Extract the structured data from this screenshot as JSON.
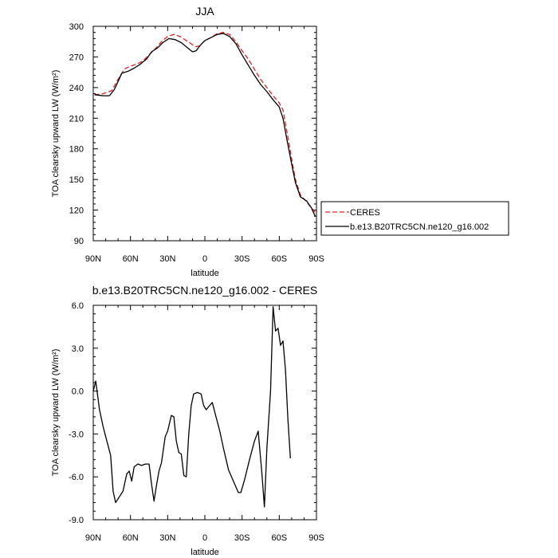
{
  "chart_data": [
    {
      "type": "line",
      "title": "JJA",
      "xlabel": "latitude",
      "ylabel": "TOA clearsky upward LW (W/m²)",
      "x_units": "latitude degrees (90N = 90, 90S = -90)",
      "xlim": [
        90,
        -90
      ],
      "ylim": [
        90,
        300
      ],
      "xticks": [
        {
          "value": 90,
          "label": "90N"
        },
        {
          "value": 60,
          "label": "60N"
        },
        {
          "value": 30,
          "label": "30N"
        },
        {
          "value": 0,
          "label": "0"
        },
        {
          "value": -30,
          "label": "30S"
        },
        {
          "value": -60,
          "label": "60S"
        },
        {
          "value": -90,
          "label": "90S"
        }
      ],
      "yticks": [
        {
          "value": 90,
          "label": "90"
        },
        {
          "value": 120,
          "label": "120"
        },
        {
          "value": 150,
          "label": "150"
        },
        {
          "value": 180,
          "label": "180"
        },
        {
          "value": 210,
          "label": "210"
        },
        {
          "value": 240,
          "label": "240"
        },
        {
          "value": 270,
          "label": "270"
        },
        {
          "value": 300,
          "label": "300"
        }
      ],
      "legend": {
        "placement": "right"
      },
      "series": [
        {
          "name": "CERES",
          "color": "#e02020",
          "dash": "dashed",
          "points": [
            [
              89,
              233
            ],
            [
              82,
              234
            ],
            [
              75,
              237
            ],
            [
              70,
              248
            ],
            [
              65,
              258
            ],
            [
              60,
              261
            ],
            [
              55,
              263
            ],
            [
              50,
              266
            ],
            [
              45,
              272
            ],
            [
              40,
              278
            ],
            [
              35,
              285
            ],
            [
              30,
              290
            ],
            [
              25,
              292
            ],
            [
              20,
              290
            ],
            [
              15,
              286
            ],
            [
              10,
              282
            ],
            [
              7,
              280
            ],
            [
              4,
              281
            ],
            [
              0,
              286
            ],
            [
              -5,
              289
            ],
            [
              -10,
              293
            ],
            [
              -15,
              294
            ],
            [
              -20,
              292
            ],
            [
              -25,
              285
            ],
            [
              -30,
              276
            ],
            [
              -35,
              268
            ],
            [
              -40,
              258
            ],
            [
              -45,
              248
            ],
            [
              -50,
              240
            ],
            [
              -55,
              232
            ],
            [
              -60,
              225
            ],
            [
              -63,
              218
            ],
            [
              -66,
              198
            ],
            [
              -70,
              170
            ],
            [
              -73,
              150
            ],
            [
              -77,
              135
            ],
            [
              -82,
              128
            ],
            [
              -86,
              122
            ],
            [
              -89,
              118
            ]
          ]
        },
        {
          "name": "b.e13.B20TRC5CN.ne120_g16.002",
          "color": "#000000",
          "dash": "solid",
          "points": [
            [
              89,
              233
            ],
            [
              82,
              232
            ],
            [
              77,
              232
            ],
            [
              73,
              238
            ],
            [
              70,
              246
            ],
            [
              67,
              254
            ],
            [
              62,
              256
            ],
            [
              57,
              259
            ],
            [
              52,
              263
            ],
            [
              47,
              268
            ],
            [
              43,
              275
            ],
            [
              38,
              279
            ],
            [
              34,
              284
            ],
            [
              29,
              288
            ],
            [
              24,
              287
            ],
            [
              19,
              284
            ],
            [
              14,
              279
            ],
            [
              10,
              275
            ],
            [
              7,
              276
            ],
            [
              4,
              281
            ],
            [
              0,
              286
            ],
            [
              -5,
              289
            ],
            [
              -10,
              292
            ],
            [
              -15,
              293
            ],
            [
              -20,
              290
            ],
            [
              -25,
              283
            ],
            [
              -30,
              272
            ],
            [
              -35,
              262
            ],
            [
              -40,
              252
            ],
            [
              -45,
              243
            ],
            [
              -50,
              236
            ],
            [
              -55,
              228
            ],
            [
              -60,
              221
            ],
            [
              -63,
              210
            ],
            [
              -66,
              190
            ],
            [
              -70,
              165
            ],
            [
              -73,
              147
            ],
            [
              -77,
              133
            ],
            [
              -82,
              129
            ],
            [
              -86,
              122
            ],
            [
              -89,
              114
            ]
          ]
        }
      ]
    },
    {
      "type": "line",
      "title": "b.e13.B20TRC5CN.ne120_g16.002 - CERES",
      "xlabel": "latitude",
      "ylabel": "TOA clearsky upward LW (W/m²)",
      "x_units": "latitude degrees (90N = 90, 90S = -90)",
      "xlim": [
        90,
        -90
      ],
      "ylim": [
        -9.0,
        6.0
      ],
      "xticks": [
        {
          "value": 90,
          "label": "90N"
        },
        {
          "value": 60,
          "label": "60N"
        },
        {
          "value": 30,
          "label": "30N"
        },
        {
          "value": 0,
          "label": "0"
        },
        {
          "value": -30,
          "label": "30S"
        },
        {
          "value": -60,
          "label": "60S"
        },
        {
          "value": -90,
          "label": "90S"
        }
      ],
      "yticks": [
        {
          "value": -9.0,
          "label": "-9.0"
        },
        {
          "value": -6.0,
          "label": "-6.0"
        },
        {
          "value": -3.0,
          "label": "-3.0"
        },
        {
          "value": 0.0,
          "label": "0.0"
        },
        {
          "value": 3.0,
          "label": "3.0"
        },
        {
          "value": 6.0,
          "label": "6.0"
        }
      ],
      "series": [
        {
          "color": "#000000",
          "dash": "solid",
          "points": [
            [
              90,
              0.0
            ],
            [
              88,
              0.7
            ],
            [
              85,
              -1.3
            ],
            [
              82,
              -2.5
            ],
            [
              79,
              -3.5
            ],
            [
              76,
              -4.5
            ],
            [
              74,
              -7.0
            ],
            [
              72,
              -7.8
            ],
            [
              69,
              -7.4
            ],
            [
              66,
              -7.0
            ],
            [
              63,
              -5.8
            ],
            [
              61,
              -5.6
            ],
            [
              59,
              -6.3
            ],
            [
              57,
              -5.3
            ],
            [
              54,
              -5.1
            ],
            [
              51,
              -5.2
            ],
            [
              48,
              -5.1
            ],
            [
              45,
              -5.1
            ],
            [
              43,
              -6.5
            ],
            [
              41,
              -7.7
            ],
            [
              39,
              -6.6
            ],
            [
              37,
              -5.6
            ],
            [
              35,
              -5.0
            ],
            [
              32,
              -3.2
            ],
            [
              30,
              -2.8
            ],
            [
              27,
              -1.7
            ],
            [
              25,
              -1.8
            ],
            [
              23,
              -3.5
            ],
            [
              21,
              -4.3
            ],
            [
              19,
              -4.4
            ],
            [
              17,
              -5.9
            ],
            [
              15,
              -6.0
            ],
            [
              13,
              -3.0
            ],
            [
              11,
              -1.0
            ],
            [
              9,
              -0.2
            ],
            [
              6,
              -0.1
            ],
            [
              3,
              -0.2
            ],
            [
              1,
              -1.0
            ],
            [
              -1,
              -1.3
            ],
            [
              -4,
              -1.0
            ],
            [
              -6,
              -0.8
            ],
            [
              -9,
              -1.8
            ],
            [
              -12,
              -2.8
            ],
            [
              -15,
              -4.0
            ],
            [
              -19,
              -5.5
            ],
            [
              -23,
              -6.3
            ],
            [
              -27,
              -7.1
            ],
            [
              -29,
              -7.1
            ],
            [
              -32,
              -6.2
            ],
            [
              -36,
              -4.8
            ],
            [
              -40,
              -3.5
            ],
            [
              -43,
              -2.8
            ],
            [
              -46,
              -5.8
            ],
            [
              -48,
              -8.1
            ],
            [
              -50,
              -4.0
            ],
            [
              -53,
              0.0
            ],
            [
              -55,
              5.9
            ],
            [
              -57,
              4.2
            ],
            [
              -59,
              4.4
            ],
            [
              -61,
              3.2
            ],
            [
              -63,
              3.5
            ],
            [
              -65,
              1.5
            ],
            [
              -67,
              -2.0
            ],
            [
              -69,
              -4.7
            ]
          ]
        }
      ]
    }
  ]
}
